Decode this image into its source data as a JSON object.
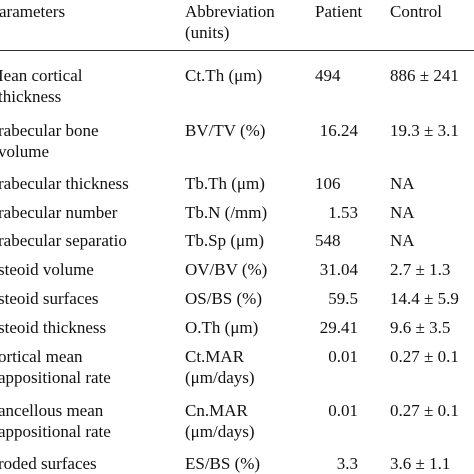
{
  "table": {
    "header": [
      [
        "arameters"
      ],
      [
        "Abbreviation",
        "(units)"
      ],
      [
        "Patient"
      ],
      [
        "Control"
      ]
    ],
    "rows": [
      [
        [
          "Iean cortical",
          "thickness"
        ],
        [
          "Ct.Th (μm)"
        ],
        "494",
        "886 ± 241"
      ],
      [
        [
          "rabecular bone",
          "volume"
        ],
        [
          "BV/TV (%)"
        ],
        "16.24",
        "19.3 ± 3.1"
      ],
      [
        [
          "rabecular thickness"
        ],
        [
          "Tb.Th (μm)"
        ],
        "106",
        "NA"
      ],
      [
        [
          "rabecular number"
        ],
        [
          "Tb.N (/mm)"
        ],
        "1.53",
        "NA"
      ],
      [
        [
          "rabecular separatio"
        ],
        [
          "Tb.Sp (μm)"
        ],
        "548",
        "NA"
      ],
      [
        [
          "steoid volume"
        ],
        [
          "OV/BV (%)"
        ],
        "31.04",
        "2.7 ± 1.3"
      ],
      [
        [
          "steoid surfaces"
        ],
        [
          "OS/BS (%)"
        ],
        "59.5",
        "14.4 ± 5.9"
      ],
      [
        [
          "steoid thickness"
        ],
        [
          "O.Th (μm)"
        ],
        "29.41",
        "9.6 ± 3.5"
      ],
      [
        [
          "ortical mean",
          "appositional rate"
        ],
        [
          "Ct.MAR",
          "(μm/days)"
        ],
        "0.01",
        "0.27 ± 0.1"
      ],
      [
        [
          "ancellous mean",
          "appositional rate"
        ],
        [
          "Cn.MAR",
          "(μm/days)"
        ],
        "0.01",
        "0.27 ± 0.1"
      ],
      [
        [
          "roded surfaces"
        ],
        [
          "ES/BS (%)"
        ],
        "3.3",
        "3.6 ± 1.1"
      ]
    ]
  }
}
